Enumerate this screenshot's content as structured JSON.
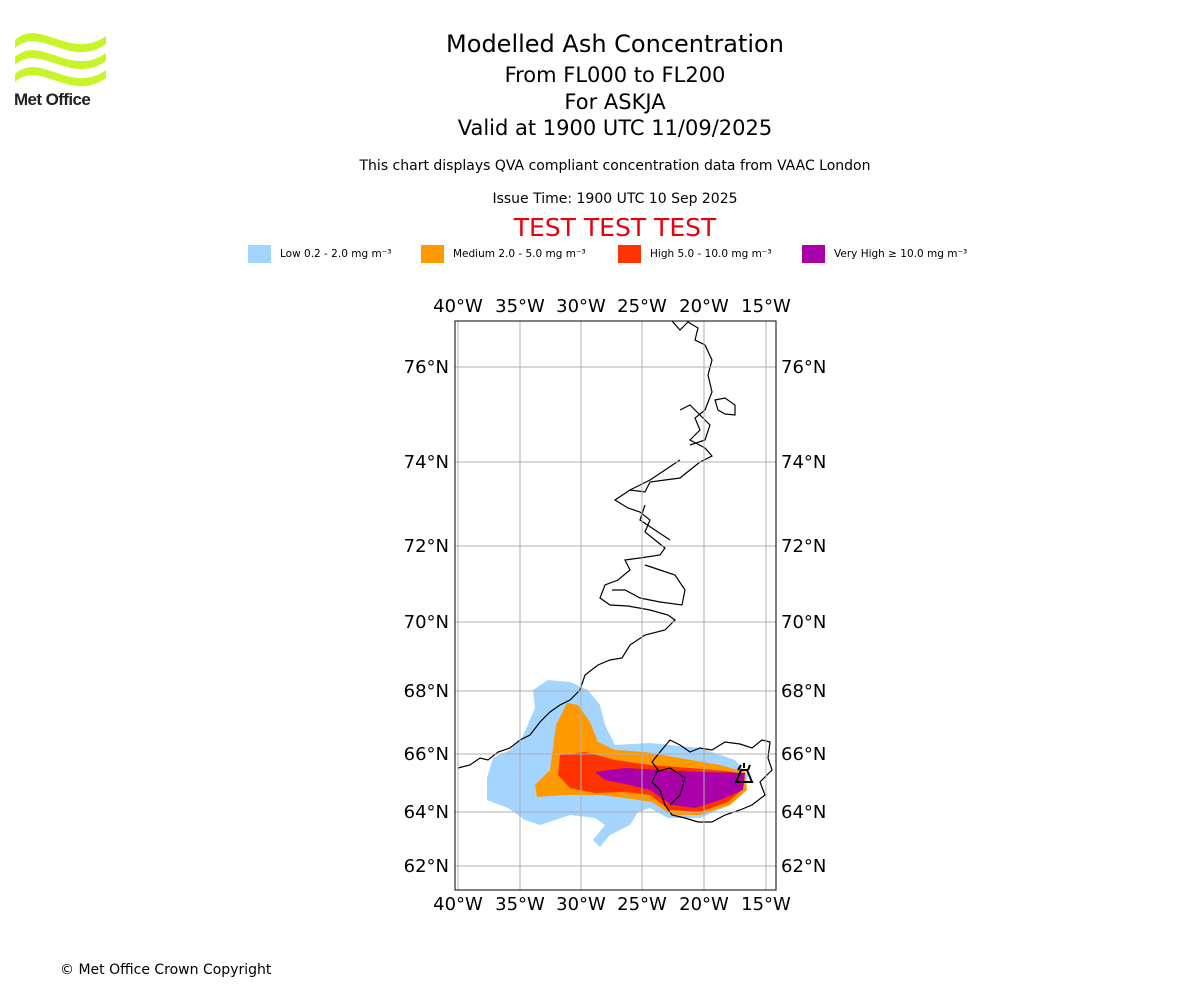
{
  "logo": {
    "name": "Met Office",
    "text": "Met Office",
    "color": "#c8f52a"
  },
  "header": {
    "title": "Modelled Ash Concentration",
    "level_range": "From FL000 to FL200",
    "volcano": "For ASKJA",
    "valid_time": "Valid at 1900 UTC 11/09/2025",
    "description": "This chart displays QVA compliant concentration data from VAAC London",
    "issue_time": "Issue Time: 1900 UTC 10 Sep 2025",
    "test_banner": "TEST TEST TEST"
  },
  "legend": [
    {
      "label": "Low 0.2 - 2.0 mg m⁻³",
      "color": "#a3d5ff"
    },
    {
      "label": "Medium 2.0 - 5.0 mg m⁻³",
      "color": "#ff9900"
    },
    {
      "label": "High 5.0 - 10.0 mg m⁻³",
      "color": "#ff3300"
    },
    {
      "label": "Very High ≥ 10.0 mg m⁻³",
      "color": "#aa00aa"
    }
  ],
  "map": {
    "lon_ticks": [
      "40°W",
      "35°W",
      "30°W",
      "25°W",
      "20°W",
      "15°W"
    ],
    "lat_ticks": [
      "76°N",
      "74°N",
      "72°N",
      "70°N",
      "68°N",
      "66°N",
      "64°N",
      "62°N"
    ],
    "grid": true,
    "volcano_marker": "volcano-symbol"
  },
  "footer": {
    "copyright": "© Met Office Crown Copyright"
  }
}
